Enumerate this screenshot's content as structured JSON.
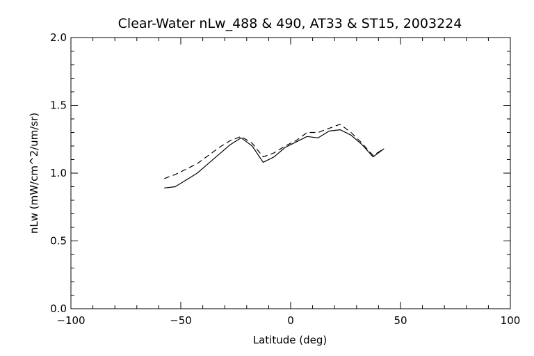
{
  "chart_data": {
    "type": "line",
    "title": "Clear-Water nLw_488 & 490, AT33 & ST15, 2003224",
    "xlabel": "Latitude (deg)",
    "ylabel": "nLw (mW/cm^2/um/sr)",
    "xlim": [
      -100,
      100
    ],
    "ylim": [
      0.0,
      2.0
    ],
    "xticks": [
      -100,
      -50,
      0,
      50,
      100
    ],
    "xtick_labels": [
      "−100",
      "−50",
      "0",
      "50",
      "100"
    ],
    "yticks": [
      0.0,
      0.5,
      1.0,
      1.5,
      2.0
    ],
    "ytick_labels": [
      "0.0",
      "0.5",
      "1.0",
      "1.5",
      "2.0"
    ],
    "grid": false,
    "series": [
      {
        "style": "solid",
        "x": [
          -57.5,
          -52.5,
          -47.5,
          -42.5,
          -37.5,
          -32.5,
          -27.5,
          -22.5,
          -17.5,
          -12.5,
          -7.5,
          -2.5,
          2.5,
          7.5,
          12.5,
          17.5,
          22.5,
          27.5,
          32.5,
          37.5,
          42.5
        ],
        "y": [
          0.89,
          0.9,
          0.95,
          1.0,
          1.07,
          1.14,
          1.21,
          1.26,
          1.2,
          1.08,
          1.12,
          1.19,
          1.23,
          1.27,
          1.26,
          1.31,
          1.32,
          1.28,
          1.21,
          1.12,
          1.18
        ]
      },
      {
        "style": "dashed",
        "x": [
          -57.5,
          -52.5,
          -47.5,
          -42.5,
          -37.5,
          -32.5,
          -27.5,
          -22.5,
          -17.5,
          -12.5,
          -7.5,
          -2.5,
          2.5,
          7.5,
          12.5,
          17.5,
          22.5,
          27.5,
          32.5,
          37.5,
          42.5
        ],
        "y": [
          0.96,
          0.99,
          1.03,
          1.07,
          1.13,
          1.19,
          1.24,
          1.27,
          1.22,
          1.12,
          1.15,
          1.2,
          1.24,
          1.3,
          1.3,
          1.33,
          1.36,
          1.3,
          1.22,
          1.13,
          1.18
        ]
      }
    ]
  }
}
